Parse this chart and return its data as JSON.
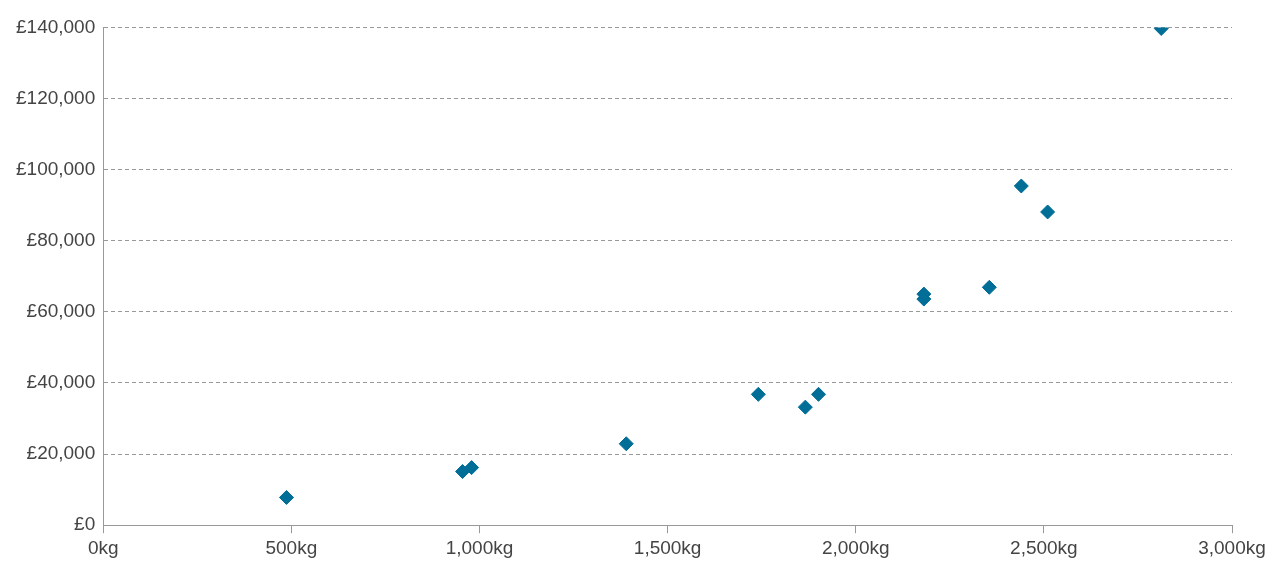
{
  "chart_data": {
    "type": "scatter",
    "marker": "diamond",
    "grid": "y",
    "legend": false,
    "x": [
      487,
      955,
      979,
      1390,
      1741,
      1866,
      1901,
      2181,
      2181,
      2355,
      2440,
      2510,
      2812
    ],
    "series": [
      {
        "color": "#006e96",
        "values": [
          7800,
          15100,
          16200,
          22900,
          36800,
          33200,
          36800,
          65000,
          63600,
          66900,
          95400,
          88100,
          139700
        ]
      }
    ],
    "xlim": [
      0,
      3000
    ],
    "xticks": [
      {
        "value": 0,
        "label": "0kg"
      },
      {
        "value": 500,
        "label": "500kg"
      },
      {
        "value": 1000,
        "label": "1,000kg"
      },
      {
        "value": 1500,
        "label": "1,500kg"
      },
      {
        "value": 2000,
        "label": "2,000kg"
      },
      {
        "value": 2500,
        "label": "2,500kg"
      },
      {
        "value": 3000,
        "label": "3,000kg"
      }
    ],
    "ylim": [
      0,
      140000
    ],
    "yticks": [
      {
        "value": 0,
        "label": "£0"
      },
      {
        "value": 20000,
        "label": "£20,000"
      },
      {
        "value": 40000,
        "label": "£40,000"
      },
      {
        "value": 60000,
        "label": "£60,000"
      },
      {
        "value": 80000,
        "label": "£80,000"
      },
      {
        "value": 100000,
        "label": "£100,000"
      },
      {
        "value": 120000,
        "label": "£120,000"
      },
      {
        "value": 140000,
        "label": "£140,000"
      }
    ]
  }
}
